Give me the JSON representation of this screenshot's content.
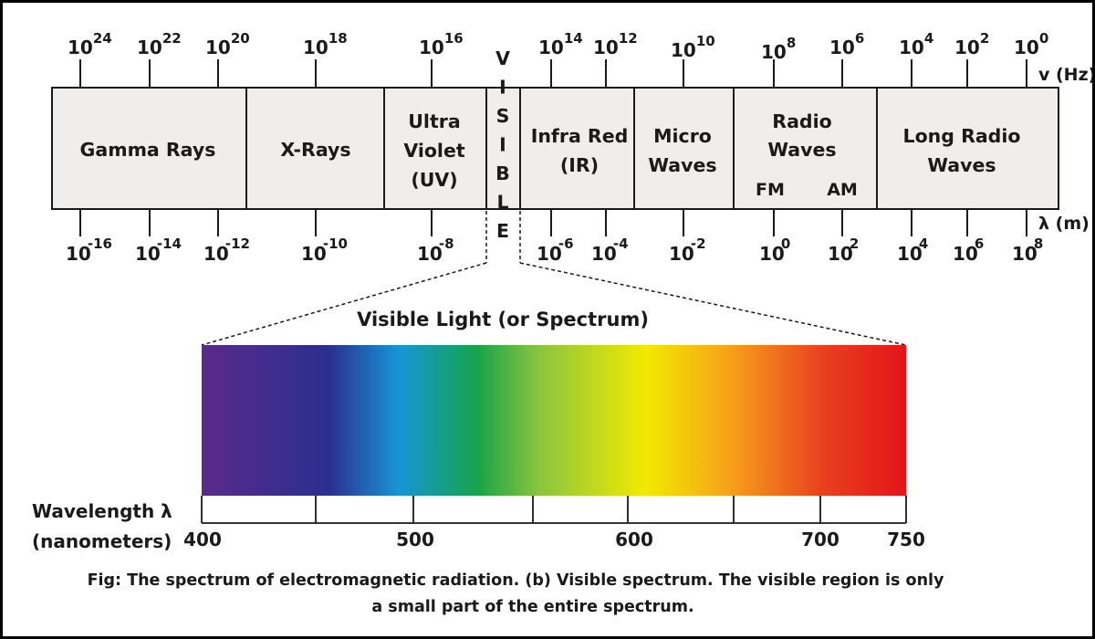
{
  "frequency_label": "v (Hz)",
  "wavelength_label": "λ (m)",
  "frequency_ticks": [
    {
      "base": "10",
      "exp": "24"
    },
    {
      "base": "10",
      "exp": "22"
    },
    {
      "base": "10",
      "exp": "20"
    },
    {
      "base": "10",
      "exp": "18"
    },
    {
      "base": "10",
      "exp": "16"
    },
    {
      "base": "10",
      "exp": "14"
    },
    {
      "base": "10",
      "exp": "12"
    },
    {
      "base": "10",
      "exp": "10"
    },
    {
      "base": "10",
      "exp": "8"
    },
    {
      "base": "10",
      "exp": "6"
    },
    {
      "base": "10",
      "exp": "4"
    },
    {
      "base": "10",
      "exp": "2"
    },
    {
      "base": "10",
      "exp": "0"
    }
  ],
  "wavelength_ticks": [
    {
      "base": "10",
      "exp": "-16"
    },
    {
      "base": "10",
      "exp": "-14"
    },
    {
      "base": "10",
      "exp": "-12"
    },
    {
      "base": "10",
      "exp": "-10"
    },
    {
      "base": "10",
      "exp": "-8"
    },
    {
      "base": "10",
      "exp": "-6"
    },
    {
      "base": "10",
      "exp": "-4"
    },
    {
      "base": "10",
      "exp": "-2"
    },
    {
      "base": "10",
      "exp": "0"
    },
    {
      "base": "10",
      "exp": "2"
    },
    {
      "base": "10",
      "exp": "4"
    },
    {
      "base": "10",
      "exp": "6"
    },
    {
      "base": "10",
      "exp": "8"
    }
  ],
  "bands": [
    {
      "lines": [
        "Gamma Rays"
      ]
    },
    {
      "lines": [
        "X-Rays"
      ]
    },
    {
      "lines": [
        "Ultra",
        "Violet",
        "(UV)"
      ]
    },
    {
      "lines": [
        "V",
        "I",
        "S",
        "I",
        "B",
        "L",
        "E"
      ]
    },
    {
      "lines": [
        "Infra Red",
        "(IR)"
      ]
    },
    {
      "lines": [
        "Micro",
        "Waves"
      ]
    },
    {
      "lines": [
        "Radio",
        "Waves"
      ],
      "sub": [
        "FM",
        "AM"
      ]
    },
    {
      "lines": [
        "Long Radio",
        "Waves"
      ]
    }
  ],
  "visible_title": "Visible Light (or Spectrum)",
  "wavelength_axis_title": [
    "Wavelength λ",
    "(nanometers)"
  ],
  "nm_labels": [
    "400",
    "500",
    "600",
    "700",
    "750"
  ],
  "caption": [
    "Fig: The spectrum of electromagnetic radiation. (b) Visible spectrum. The visible region is only",
    "a small part of the entire spectrum."
  ],
  "colors": {
    "band_fill": "#f0eeed",
    "spectrum": [
      "#5a2a8a",
      "#2a2f8f",
      "#1596d4",
      "#16a34a",
      "#8bc53f",
      "#f2ea00",
      "#f7a11a",
      "#e9411e",
      "#e4141b"
    ]
  }
}
